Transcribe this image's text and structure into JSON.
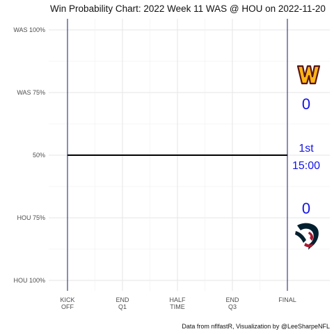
{
  "chart_data": {
    "type": "line",
    "title": "Win Probability Chart: 2022 Week 11 WAS @ HOU on 2022-11-20",
    "y_ticks": [
      {
        "label": "WAS 100%",
        "value": 1.0
      },
      {
        "label": "WAS 75%",
        "value": 0.75
      },
      {
        "label": "50%",
        "value": 0.5
      },
      {
        "label": "HOU 75%",
        "value": 0.25
      },
      {
        "label": "HOU 100%",
        "value": 0.0
      }
    ],
    "ylim": [
      0,
      1
    ],
    "x_ticks": [
      {
        "lines": [
          "KICK",
          "OFF"
        ],
        "value": 0
      },
      {
        "lines": [
          "END",
          "Q1"
        ],
        "value": 900
      },
      {
        "lines": [
          "HALF",
          "TIME"
        ],
        "value": 1800
      },
      {
        "lines": [
          "END",
          "Q3"
        ],
        "value": 2700
      },
      {
        "lines": [
          "FINAL"
        ],
        "value": 3600
      }
    ],
    "xlim": [
      0,
      3600
    ],
    "series": [
      {
        "x": [
          0,
          3600
        ],
        "y": [
          0.5,
          0.5
        ],
        "color": "#000000"
      }
    ],
    "vertical_lines": [
      0,
      3600
    ],
    "grid": true,
    "caption": "Data from nflfastR, Visualization by @LeeSharpeNFL"
  },
  "scoreboard": {
    "away_score": "0",
    "home_score": "0",
    "quarter": "1st",
    "clock": "15:00"
  },
  "logos": {
    "away": "washington-commanders-logo",
    "home": "houston-texans-logo"
  },
  "colors": {
    "score_text": "#1414e6",
    "away_primary": "#5a1414",
    "away_gold": "#ffb612",
    "home_navy": "#03202f",
    "home_red": "#a71930"
  }
}
